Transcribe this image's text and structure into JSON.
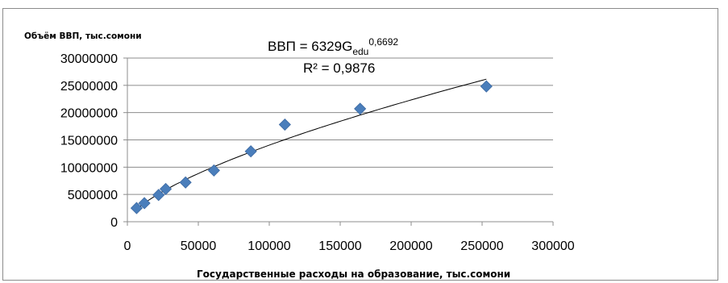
{
  "chart_data": {
    "type": "scatter",
    "ylabel": "Объём ВВП, тыс.сомони",
    "xlabel": "Государственные расходы на образование, тыс.сомони",
    "xlim": [
      0,
      300000
    ],
    "ylim": [
      0,
      30000000
    ],
    "x_ticks": [
      "0",
      "50000",
      "100000",
      "150000",
      "200000",
      "250000",
      "300000"
    ],
    "y_ticks": [
      "0",
      "5000000",
      "10000000",
      "15000000",
      "20000000",
      "25000000",
      "30000000"
    ],
    "grid": {
      "horizontal": true,
      "vertical": false
    },
    "marker": "diamond",
    "marker_color": "#4a7ebb",
    "trendline_color": "#000000",
    "series": [
      {
        "points": [
          {
            "x": 6500,
            "y": 2500000
          },
          {
            "x": 12000,
            "y": 3400000
          },
          {
            "x": 22000,
            "y": 4900000
          },
          {
            "x": 27000,
            "y": 6000000
          },
          {
            "x": 41000,
            "y": 7200000
          },
          {
            "x": 61000,
            "y": 9400000
          },
          {
            "x": 87000,
            "y": 12900000
          },
          {
            "x": 111000,
            "y": 17800000
          },
          {
            "x": 164000,
            "y": 20700000
          },
          {
            "x": 253000,
            "y": 24800000
          }
        ]
      }
    ],
    "trendline": {
      "type": "power",
      "coefficient": 6329,
      "exponent": 0.6692,
      "x_range": [
        6500,
        253000
      ]
    },
    "equation": {
      "lhs": "ВВП = 6329G",
      "subscript": "edu",
      "superscript": "0,6692",
      "r2": "R² = 0,9876"
    }
  }
}
